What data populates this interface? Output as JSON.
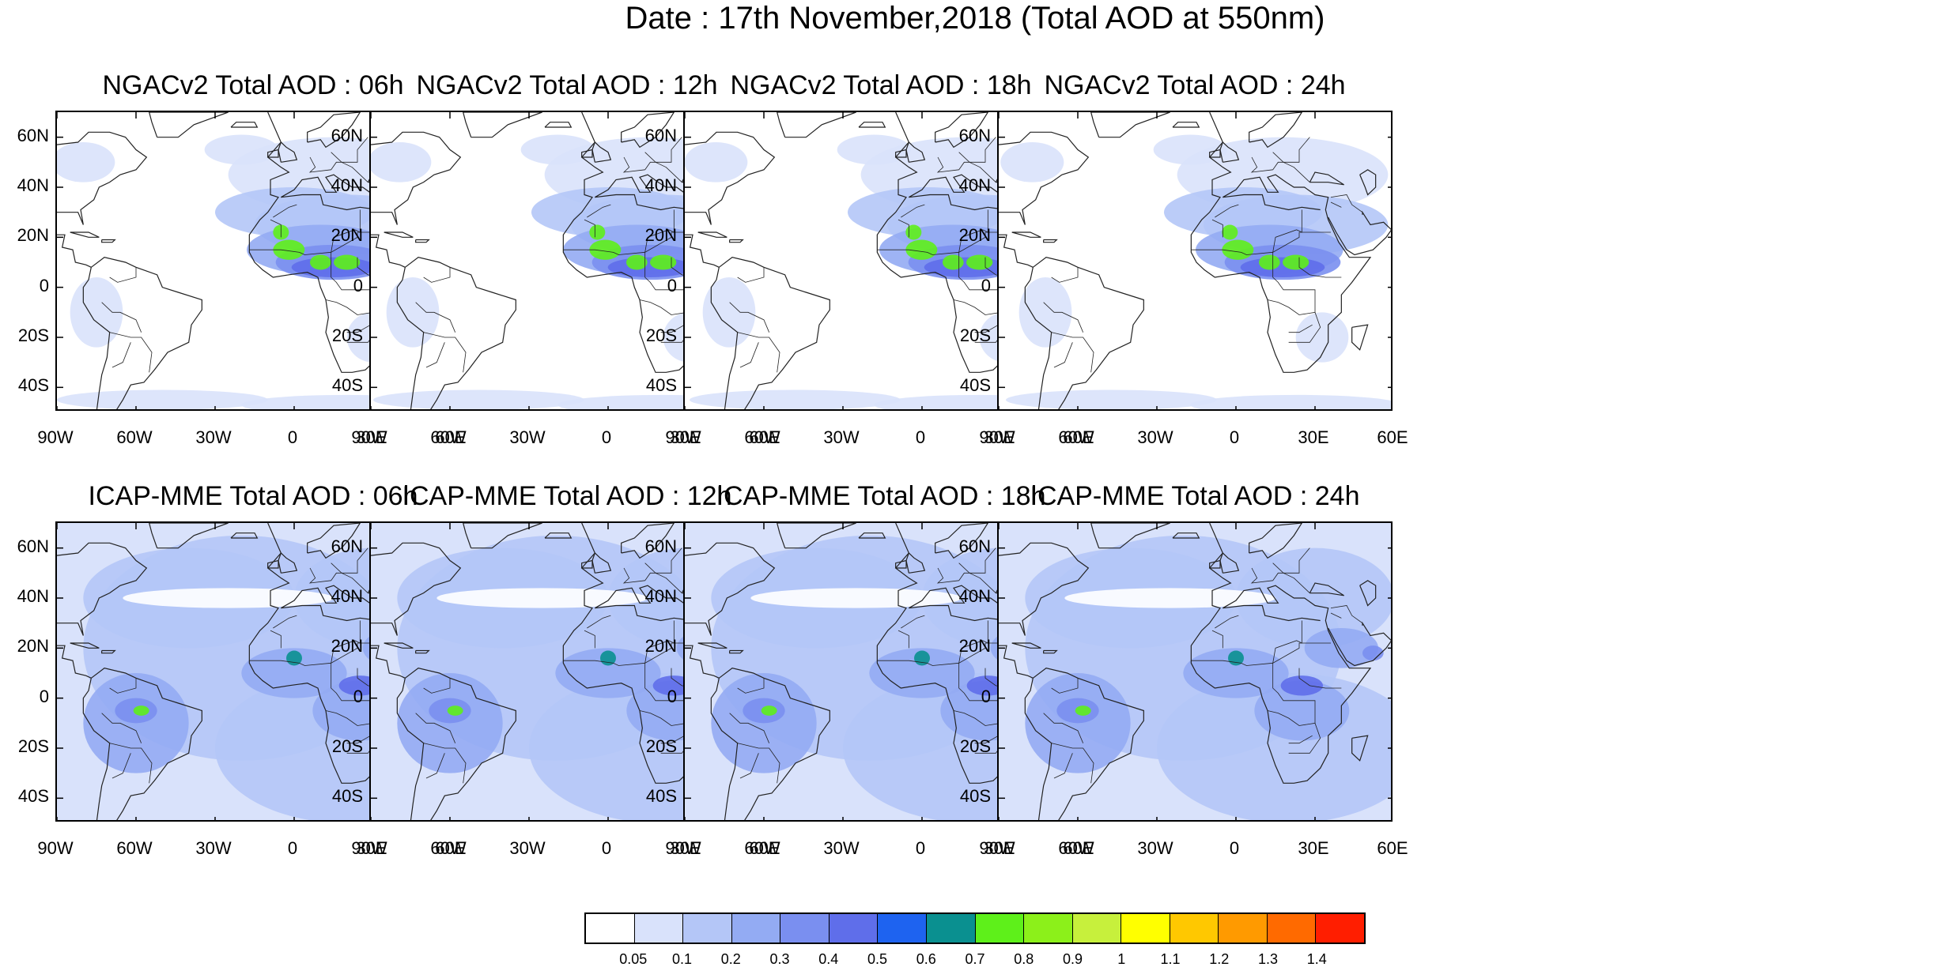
{
  "title": "Date : 17th November,2018 (Total AOD at 550nm)",
  "lat_ticks": [
    "60N",
    "40N",
    "20N",
    "0",
    "20S",
    "40S"
  ],
  "lon_ticks": [
    "90W",
    "60W",
    "30W",
    "0",
    "30E",
    "60E"
  ],
  "panels": [
    {
      "title": "NGACv2 Total AOD : 06h",
      "model": "NGACv2"
    },
    {
      "title": "NGACv2 Total AOD : 12h",
      "model": "NGACv2"
    },
    {
      "title": "NGACv2 Total AOD : 18h",
      "model": "NGACv2"
    },
    {
      "title": "NGACv2 Total AOD : 24h",
      "model": "NGACv2"
    },
    {
      "title": "ICAP-MME Total AOD : 06h",
      "model": "ICAP-MME"
    },
    {
      "title": "ICAP-MME Total AOD : 12h",
      "model": "ICAP-MME"
    },
    {
      "title": "ICAP-MME Total AOD : 18h",
      "model": "ICAP-MME"
    },
    {
      "title": "ICAP-MME Total AOD : 24h",
      "model": "ICAP-MME"
    }
  ],
  "colorbar": {
    "labels": [
      "0.05",
      "0.1",
      "0.2",
      "0.3",
      "0.4",
      "0.5",
      "0.6",
      "0.7",
      "0.8",
      "0.9",
      "1",
      "1.1",
      "1.2",
      "1.3",
      "1.4"
    ],
    "colors": [
      "#ffffff",
      "#d9e2fb",
      "#b4c6f7",
      "#93abf3",
      "#7a8ff0",
      "#5f6eea",
      "#1e63f0",
      "#0a9090",
      "#5ef01a",
      "#8cf01a",
      "#c7f03c",
      "#ffff00",
      "#ffc800",
      "#ff9a00",
      "#ff6a00",
      "#ff1e00"
    ]
  }
}
